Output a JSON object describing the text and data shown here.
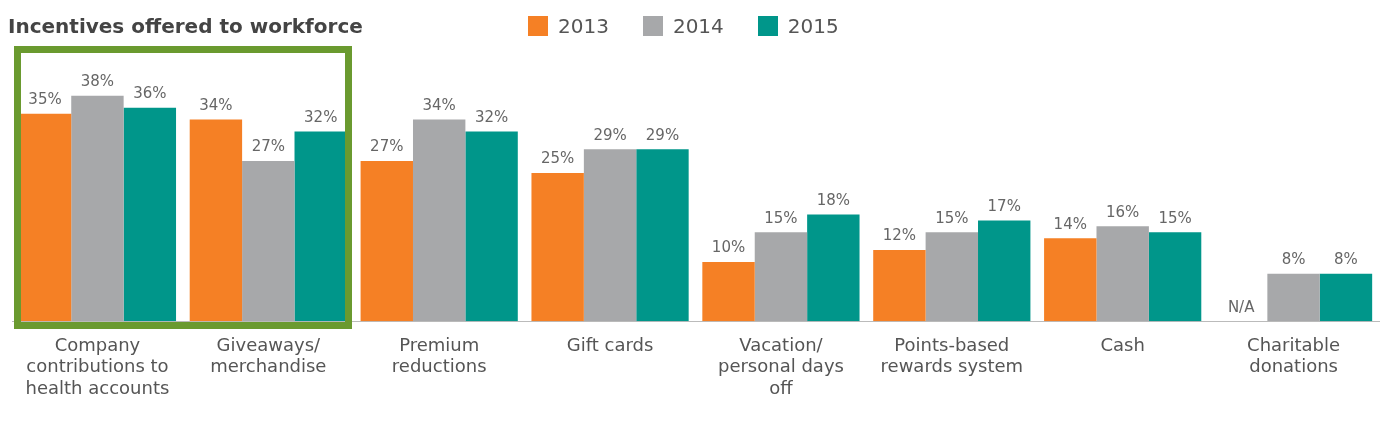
{
  "chart_data": {
    "type": "bar",
    "title": "Incentives offered to workforce",
    "legend": "top",
    "categories": [
      "Company contributions to health accounts",
      "Giveaways/ merchandise",
      "Premium reductions",
      "Gift cards",
      "Vacation/ personal days off",
      "Points-based rewards system",
      "Cash",
      "Charitable donations"
    ],
    "series": [
      {
        "name": "2013",
        "color": "#f58025",
        "values": [
          35,
          34,
          27,
          25,
          10,
          12,
          14,
          null
        ],
        "value_labels": [
          "35%",
          "34%",
          "27%",
          "25%",
          "10%",
          "12%",
          "14%",
          "N/A"
        ]
      },
      {
        "name": "2014",
        "color": "#a7a8aa",
        "values": [
          38,
          27,
          34,
          29,
          15,
          15,
          16,
          8
        ],
        "value_labels": [
          "38%",
          "27%",
          "34%",
          "29%",
          "15%",
          "15%",
          "16%",
          "8%"
        ]
      },
      {
        "name": "2015",
        "color": "#00968a",
        "values": [
          36,
          32,
          32,
          29,
          18,
          17,
          15,
          8
        ],
        "value_labels": [
          "36%",
          "32%",
          "32%",
          "29%",
          "18%",
          "17%",
          "15%",
          "8%"
        ]
      }
    ]
  }
}
